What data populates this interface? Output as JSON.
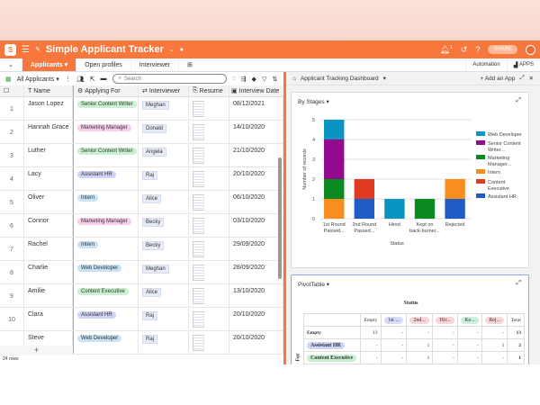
{
  "app": {
    "title": "Simple Applicant Tracker",
    "share": "SHARE",
    "notification_count": "1"
  },
  "tabs": [
    {
      "label": "Applicants"
    },
    {
      "label": "Open profiles"
    },
    {
      "label": "Interviewer"
    }
  ],
  "top_right": {
    "automation": "Automation",
    "apps": "APPS"
  },
  "toolbar": {
    "view": "All Applicants",
    "search_placeholder": "Search"
  },
  "columns": [
    "Name",
    "Applying For",
    "Interviewer",
    "Resume",
    "Interview Date"
  ],
  "rows": [
    {
      "n": "1",
      "name": "Jason Lopez",
      "role": "Senior Content Writer",
      "interviewer": "Meghan",
      "date": "08/12/2021"
    },
    {
      "n": "2",
      "name": "Hannah Grace",
      "role": "Marketing Manager",
      "interviewer": "Donald",
      "date": "14/10/2020"
    },
    {
      "n": "3",
      "name": "Luther",
      "role": "Senior Content Writer",
      "interviewer": "Angela",
      "date": "21/10/2020"
    },
    {
      "n": "4",
      "name": "Lacy",
      "role": "Assistant HR",
      "interviewer": "Raj",
      "date": "20/10/2020"
    },
    {
      "n": "5",
      "name": "Oliver",
      "role": "Intern",
      "interviewer": "Alice",
      "date": "06/10/2020"
    },
    {
      "n": "6",
      "name": "Connor",
      "role": "Marketing Manager",
      "interviewer": "Becky",
      "date": "03/10/2020"
    },
    {
      "n": "7",
      "name": "Rachel",
      "role": "Intern",
      "interviewer": "Becky",
      "date": "29/09/2020"
    },
    {
      "n": "8",
      "name": "Charlie",
      "role": "Web Developer",
      "interviewer": "Meghan",
      "date": "28/09/2020"
    },
    {
      "n": "9",
      "name": "Amilie",
      "role": "Content Executive",
      "interviewer": "Alice",
      "date": "13/10/2020"
    },
    {
      "n": "10",
      "name": "Clara",
      "role": "Assistant HR",
      "interviewer": "Raj",
      "date": "20/10/2020"
    },
    {
      "n": "",
      "name": "Steve",
      "role": "Web Developer",
      "interviewer": "Raj",
      "date": "20/10/2020"
    }
  ],
  "role_colors": {
    "Senior Content Writer": "#c9f0cf",
    "Marketing Manager": "#f9cdea",
    "Assistant HR": "#cfd3f5",
    "Intern": "#c8e3f5",
    "Web Developer": "#c8e3f5",
    "Content Executive": "#c9f0cf"
  },
  "row_count": "24 rows",
  "dashboard": {
    "title": "Applicant Tracking Dashboard",
    "add_app": "Add an App"
  },
  "chart_data": {
    "type": "bar",
    "stacked": true,
    "title": "By Stages",
    "xlabel": "Status",
    "ylabel": "Number of records",
    "ylim": [
      0,
      5
    ],
    "yticks": [
      0,
      1,
      2,
      3,
      4,
      5
    ],
    "grid": true,
    "legend_position": "right",
    "categories": [
      "1st Round Passed...",
      "2nd Round Passed...",
      "Hired",
      "Kept on back-burner...",
      "Rejected"
    ],
    "series": [
      {
        "name": "Assistant HR",
        "color": "#1f5cc6",
        "values": [
          0,
          1,
          0,
          0,
          1
        ]
      },
      {
        "name": "Content Executive",
        "color": "#e03a22",
        "values": [
          0,
          1,
          0,
          0,
          0
        ]
      },
      {
        "name": "Intern",
        "color": "#fa8d20",
        "values": [
          1,
          0,
          0,
          0,
          1
        ]
      },
      {
        "name": "Marketing Manager...",
        "color": "#0b8a1f",
        "values": [
          1,
          0,
          0,
          1,
          0
        ]
      },
      {
        "name": "Senior Content Writer...",
        "color": "#940a8e",
        "values": [
          2,
          0,
          0,
          0,
          0
        ]
      },
      {
        "name": "Web Developer",
        "color": "#0a94c4",
        "values": [
          1,
          0,
          1,
          0,
          0
        ]
      }
    ]
  },
  "pivot": {
    "title": "PivotTable",
    "col_header": "Status",
    "row_axis": "For",
    "headers": [
      "",
      "Empty",
      "1st ...",
      "2nd...",
      "Hir...",
      "Ke...",
      "Rej...",
      "Total"
    ],
    "rows": [
      [
        "Empty",
        "13",
        "-",
        "-",
        "-",
        "-",
        "-",
        "13"
      ],
      [
        "Assistant HR",
        "-",
        "-",
        "1",
        "-",
        "-",
        "1",
        "2"
      ],
      [
        "Content Executive",
        "-",
        "-",
        "1",
        "-",
        "-",
        "-",
        "1"
      ]
    ]
  }
}
